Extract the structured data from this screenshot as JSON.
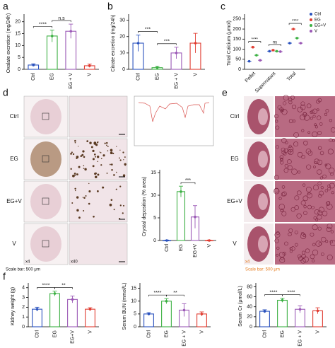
{
  "panel_labels": [
    "a",
    "b",
    "c",
    "d",
    "e",
    "f"
  ],
  "images": {
    "d_rows": [
      "Ctrl",
      "EG",
      "EG+V",
      "V"
    ],
    "d_mag": [
      "x4",
      "x40"
    ],
    "d_scale": "Scale bar: 500 μm",
    "e_rows": [
      "Ctrl",
      "EG",
      "EG+V",
      "V"
    ],
    "e_mag": "x4",
    "e_scale": "Scale bar: 500 μm"
  },
  "chart_data": [
    {
      "type": "bar",
      "ylabel": "Oxalate excretion (mg/24h)",
      "categories": [
        "Ctrl",
        "EG",
        "EG + V",
        "V"
      ],
      "values": [
        1.8,
        14,
        16,
        1.5
      ],
      "errors": [
        0.5,
        2.5,
        3,
        0.7
      ],
      "colors": [
        "#2a52be",
        "#3cb043",
        "#9b59b6",
        "#e03c31"
      ],
      "ylim": [
        0,
        22
      ],
      "yticks": [
        0,
        5,
        10,
        15,
        20
      ],
      "annotations": [
        "****",
        "n.s"
      ]
    },
    {
      "type": "bar",
      "ylabel": "Citrate excretion (mg/24h)",
      "categories": [
        "Ctrl",
        "EG",
        "EG + V",
        "V"
      ],
      "values": [
        16,
        1,
        10,
        16
      ],
      "errors": [
        5,
        0.8,
        3.5,
        6
      ],
      "colors": [
        "#2a52be",
        "#3cb043",
        "#9b59b6",
        "#e03c31"
      ],
      "ylim": [
        0,
        32
      ],
      "yticks": [
        0,
        10,
        20,
        30
      ],
      "annotations": [
        "***",
        "***"
      ]
    },
    {
      "type": "dot",
      "ylabel": "Total Calcium (μmol)",
      "categories": [
        "Pellet",
        "Supernatant",
        "Total"
      ],
      "series": [
        {
          "name": "Ctrl",
          "color": "#2a52be",
          "values": [
            40,
            90,
            130
          ]
        },
        {
          "name": "EG",
          "color": "#e03c31",
          "values": [
            110,
            95,
            200
          ]
        },
        {
          "name": "EG+V",
          "color": "#3cb043",
          "values": [
            70,
            90,
            155
          ]
        },
        {
          "name": "V",
          "color": "#9b59b6",
          "values": [
            45,
            88,
            130
          ]
        }
      ],
      "ylim": [
        0,
        260
      ],
      "yticks": [
        0,
        50,
        100,
        150,
        200,
        250
      ],
      "annotations": [
        "****",
        "ns",
        "****"
      ]
    },
    {
      "type": "bar",
      "ylabel": "Crystal deposition (% area)",
      "categories": [
        "Ctrl",
        "EG",
        "EG+V",
        "V"
      ],
      "values": [
        0,
        10.8,
        5.2,
        0
      ],
      "errors": [
        0.1,
        1.2,
        2.5,
        0.1
      ],
      "colors": [
        "#2a52be",
        "#3cb043",
        "#9b59b6",
        "#e03c31"
      ],
      "ylim": [
        0,
        15
      ],
      "yticks": [
        0,
        5,
        10,
        15
      ],
      "annotations": [
        "***"
      ]
    },
    {
      "type": "bar",
      "ylabel": "Kidney weight (g)",
      "categories": [
        "Ctrl",
        "EG",
        "EG+V",
        "V"
      ],
      "values": [
        1.8,
        3.4,
        2.8,
        1.8
      ],
      "errors": [
        0.2,
        0.25,
        0.35,
        0.15
      ],
      "colors": [
        "#2a52be",
        "#3cb043",
        "#9b59b6",
        "#e03c31"
      ],
      "ylim": [
        0,
        4.2
      ],
      "yticks": [
        0,
        1,
        2,
        3,
        4
      ],
      "annotations": [
        "****",
        "**"
      ]
    },
    {
      "type": "bar",
      "ylabel": "Serum BUN (mmol/L)",
      "categories": [
        "Ctrl",
        "EG",
        "EG + V",
        "V"
      ],
      "values": [
        5,
        10,
        6.5,
        5
      ],
      "errors": [
        0.5,
        1,
        2.5,
        0.8
      ],
      "colors": [
        "#2a52be",
        "#3cb043",
        "#9b59b6",
        "#e03c31"
      ],
      "ylim": [
        0,
        16
      ],
      "yticks": [
        0,
        5,
        10,
        15
      ],
      "annotations": [
        "****",
        "**"
      ]
    },
    {
      "type": "bar",
      "ylabel": "Serum Cr (μmol/L)",
      "categories": [
        "Ctrl",
        "EG",
        "EG + V",
        "V"
      ],
      "values": [
        31,
        53,
        35,
        32
      ],
      "errors": [
        3,
        4,
        7,
        6
      ],
      "colors": [
        "#2a52be",
        "#3cb043",
        "#9b59b6",
        "#e03c31"
      ],
      "ylim": [
        0,
        82
      ],
      "yticks": [
        0,
        20,
        40,
        60,
        80
      ],
      "annotations": [
        "****",
        "****"
      ]
    }
  ]
}
